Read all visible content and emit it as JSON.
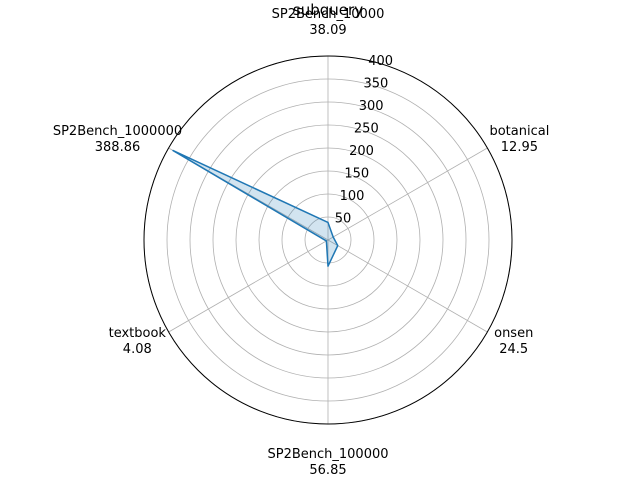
{
  "chart_data": {
    "type": "radar",
    "title": "subquery",
    "categories": [
      "SP2Bench_10000",
      "botanical",
      "onsen",
      "SP2Bench_100000",
      "textbook",
      "SP2Bench_1000000"
    ],
    "values": [
      38.09,
      12.95,
      24.5,
      56.85,
      4.08,
      388.86
    ],
    "value_labels": [
      "38.09",
      "12.95",
      "24.5",
      "56.85",
      "4.08",
      "388.86"
    ],
    "r_ticks": [
      50,
      100,
      150,
      200,
      250,
      300,
      350,
      400
    ],
    "r_tick_labels": [
      "50",
      "100",
      "150",
      "200",
      "250",
      "300",
      "350",
      "400"
    ],
    "rlim": [
      0,
      400
    ],
    "grid": true,
    "legend": "none",
    "colors": {
      "line": "#1f77b4",
      "fill": "#1f77b4",
      "fill_alpha": 0.2,
      "grid": "#b0b0b0"
    }
  }
}
